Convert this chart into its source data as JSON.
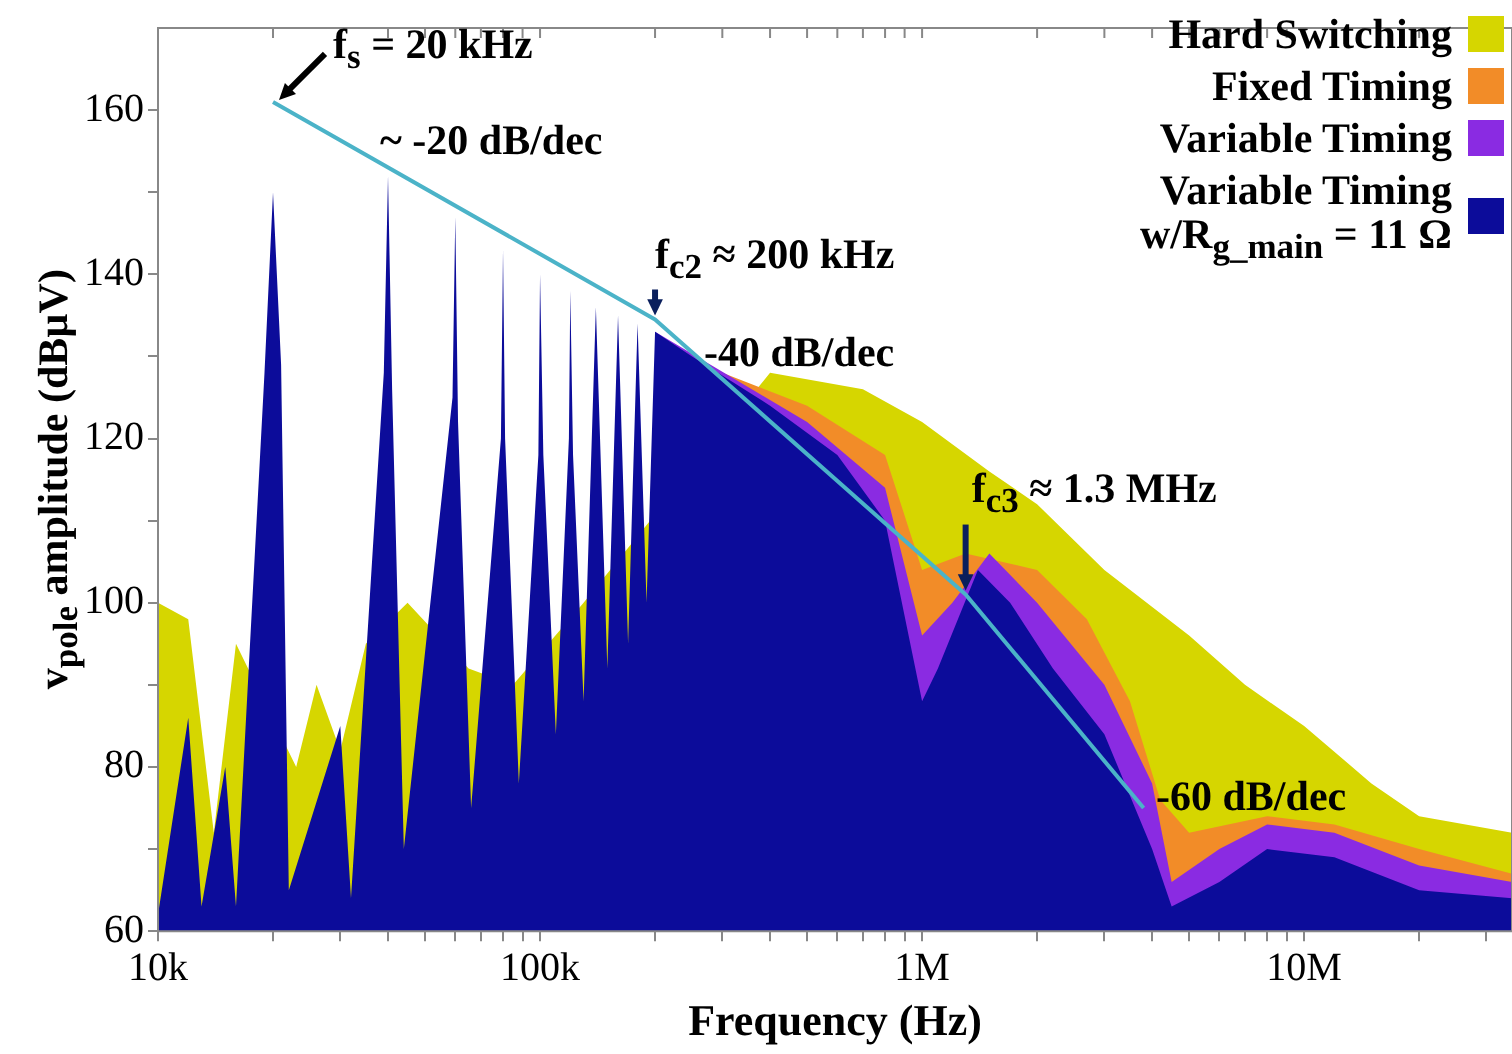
{
  "chart_data": {
    "type": "area",
    "xlabel": "Frequency (Hz)",
    "ylabel": "v$_{pole}$ amplitude (dBµV)",
    "log": "x",
    "grid": false,
    "legend": "top right",
    "xlim": [
      10000,
      35000000
    ],
    "ylim": [
      60,
      170
    ],
    "xticks": [
      {
        "value": 10000,
        "label": "10k"
      },
      {
        "value": 20000,
        "label": null
      },
      {
        "value": 30000,
        "label": null
      },
      {
        "value": 40000,
        "label": null
      },
      {
        "value": 50000,
        "label": null
      },
      {
        "value": 60000,
        "label": null
      },
      {
        "value": 70000,
        "label": null
      },
      {
        "value": 80000,
        "label": null
      },
      {
        "value": 90000,
        "label": null
      },
      {
        "value": 100000,
        "label": "100k"
      },
      {
        "value": 200000,
        "label": null
      },
      {
        "value": 300000,
        "label": null
      },
      {
        "value": 400000,
        "label": null
      },
      {
        "value": 500000,
        "label": null
      },
      {
        "value": 600000,
        "label": null
      },
      {
        "value": 700000,
        "label": null
      },
      {
        "value": 800000,
        "label": null
      },
      {
        "value": 900000,
        "label": null
      },
      {
        "value": 1000000,
        "label": "1M"
      },
      {
        "value": 2000000,
        "label": null
      },
      {
        "value": 3000000,
        "label": null
      },
      {
        "value": 4000000,
        "label": null
      },
      {
        "value": 5000000,
        "label": null
      },
      {
        "value": 6000000,
        "label": null
      },
      {
        "value": 7000000,
        "label": null
      },
      {
        "value": 8000000,
        "label": null
      },
      {
        "value": 9000000,
        "label": null
      },
      {
        "value": 10000000,
        "label": "10M"
      },
      {
        "value": 20000000,
        "label": null
      },
      {
        "value": 30000000,
        "label": null
      }
    ],
    "yticks": [
      60,
      {
        "value": 70,
        "label": null
      },
      80,
      {
        "value": 90,
        "label": null
      },
      100,
      {
        "value": 110,
        "label": null
      },
      120,
      {
        "value": 130,
        "label": null
      },
      140,
      {
        "value": 150,
        "label": null
      },
      160
    ],
    "series": [
      {
        "name": "Hard Switching",
        "color": "#d6d600",
        "x": [
          10000,
          11000,
          12000,
          14000,
          16000,
          18000,
          20000,
          23000,
          26000,
          30000,
          35000,
          38000,
          45000,
          50000,
          55000,
          65000,
          75000,
          85000,
          95000,
          110000,
          130000,
          150000,
          200000,
          250000,
          400000,
          700000,
          1000000,
          1500000,
          2000000,
          3000000,
          5000000,
          7000000,
          10000000,
          15000000,
          20000000,
          35000000
        ],
        "values": [
          100,
          null,
          98,
          72,
          95,
          null,
          null,
          80,
          90,
          82,
          95,
          null,
          100,
          null,
          null,
          92,
          null,
          90,
          null,
          null,
          100,
          null,
          null,
          null,
          128,
          126,
          122,
          116,
          112,
          104,
          96,
          90,
          85,
          78,
          74,
          72
        ]
      },
      {
        "name": "Fixed Timing",
        "color": "#f28c28",
        "x": [
          300000,
          500000,
          800000,
          1000000,
          1300000,
          2000000,
          2700000,
          3500000,
          4200000,
          5000000,
          8000000,
          12000000,
          20000000,
          35000000
        ],
        "values": [
          128,
          124,
          118,
          104,
          106,
          104,
          98,
          88,
          76,
          72,
          74,
          73,
          70,
          67
        ]
      },
      {
        "name": "Variable Timing",
        "color": "#8a2be2",
        "x": [
          200000,
          500000,
          800000,
          1000000,
          1200000,
          1500000,
          2000000,
          3000000,
          4000000,
          4500000,
          6000000,
          8000000,
          12000000,
          20000000,
          35000000
        ],
        "values": [
          133,
          122,
          114,
          96,
          100,
          106,
          100,
          90,
          78,
          66,
          70,
          73,
          72,
          68,
          66
        ]
      },
      {
        "name": "Variable Timing w/R$_{g_main}$ = 11 Ω",
        "color": "#0c0c9a",
        "x": [
          10000,
          12000,
          13000,
          15000,
          16000,
          19000,
          20000,
          21000,
          22000,
          30000,
          32000,
          39000,
          40000,
          41000,
          44000,
          59000,
          60000,
          61000,
          66000,
          79000,
          80000,
          81000,
          88000,
          99000,
          100000,
          102000,
          110000,
          119000,
          120000,
          122000,
          130000,
          140000,
          150000,
          160000,
          170000,
          180000,
          190000,
          200000,
          250000,
          400000,
          600000,
          800000,
          1000000,
          1100000,
          1400000,
          1700000,
          2200000,
          3000000,
          4000000,
          4500000,
          6000000,
          8000000,
          12000000,
          20000000,
          35000000
        ],
        "values": [
          62,
          86,
          63,
          80,
          63,
          128,
          150,
          129,
          65,
          85,
          64,
          128,
          152,
          126,
          70,
          125,
          147,
          122,
          75,
          120,
          143,
          120,
          78,
          118,
          140,
          118,
          84,
          120,
          138,
          118,
          88,
          136,
          92,
          135,
          95,
          134,
          100,
          133,
          130,
          124,
          118,
          110,
          88,
          92,
          104,
          100,
          92,
          84,
          70,
          63,
          66,
          70,
          69,
          65,
          64
        ]
      },
      {
        "type": "line",
        "color": "#4bb3c8",
        "x": [
          20000,
          200000,
          1300000,
          3800000
        ],
        "values": [
          161,
          134.5,
          101,
          75
        ]
      }
    ],
    "annotations": [
      {
        "text": "f$_{s}$ = 20 kHz",
        "x": 20000,
        "y": 161
      },
      {
        "text": "f$_{c2}$ ≈ 200 kHz",
        "x": 200000,
        "y": 134.5
      },
      {
        "text": "f$_{c3}$ ≈ 1.3 MHz",
        "x": 1300000,
        "y": 101
      },
      "~ -20 dB/dec",
      "-40 dB/dec",
      "-60 dB/dec"
    ]
  }
}
